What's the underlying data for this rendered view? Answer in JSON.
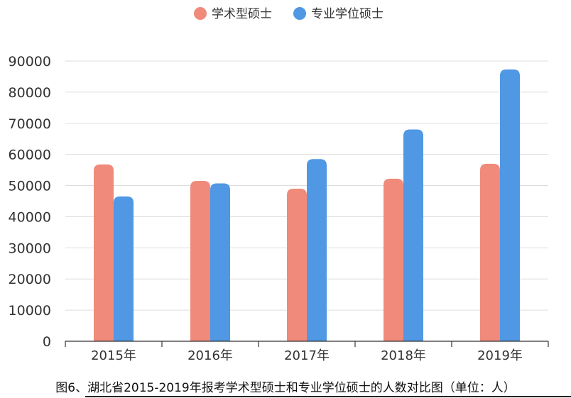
{
  "chart_data": {
    "type": "bar",
    "categories": [
      "2015年",
      "2016年",
      "2017年",
      "2018年",
      "2019年"
    ],
    "series": [
      {
        "name": "学术型硕士",
        "color": "#F08A7A",
        "values": [
          56800,
          51500,
          49000,
          52200,
          57000
        ]
      },
      {
        "name": "专业学位硕士",
        "color": "#5097E4",
        "values": [
          46500,
          50700,
          58500,
          68000,
          87300
        ]
      }
    ],
    "ylim": [
      0,
      90000
    ],
    "yticks": [
      0,
      10000,
      20000,
      30000,
      40000,
      50000,
      60000,
      70000,
      80000,
      90000
    ],
    "grid": true,
    "legend_position": "top-center",
    "caption": "图6、湖北省2015-2019年报考学术型硕士和专业学位硕士的人数对比图（单位：人）"
  }
}
